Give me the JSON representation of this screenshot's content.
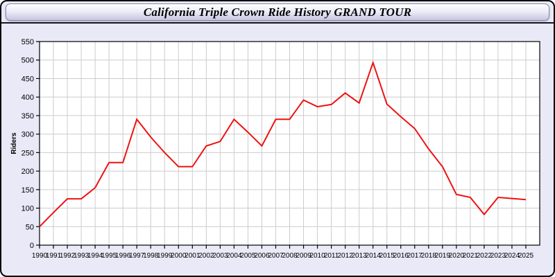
{
  "window": {
    "title": "California Triple Crown Ride History GRAND TOUR"
  },
  "colors": {
    "window_background": "#e9e9f7",
    "window_border": "#000000",
    "titlebar_border": "#8a8aa5",
    "separator": "#15151f",
    "plot_background": "#ffffff",
    "grid": "#cccccc",
    "axis": "#000000",
    "line": "#ee1111",
    "text": "#000000"
  },
  "chart_data": {
    "type": "line",
    "title": "California Triple Crown Ride History GRAND TOUR",
    "xlabel": "",
    "ylabel": "Riders",
    "ylim": [
      0,
      550
    ],
    "ytick_step": 50,
    "grid": true,
    "legend": "none",
    "x": [
      1990,
      1991,
      1992,
      1993,
      1994,
      1995,
      1996,
      1997,
      1998,
      1999,
      2000,
      2001,
      2002,
      2003,
      2004,
      2005,
      2006,
      2007,
      2008,
      2009,
      2010,
      2011,
      2012,
      2013,
      2014,
      2015,
      2016,
      2017,
      2018,
      2019,
      2020,
      2021,
      2022,
      2023,
      2024,
      2025
    ],
    "series": [
      {
        "name": "Riders",
        "color": "#ee1111",
        "values": [
          50,
          88,
          125,
          125,
          155,
          223,
          223,
          340,
          292,
          250,
          212,
          212,
          268,
          280,
          340,
          305,
          268,
          340,
          340,
          392,
          374,
          380,
          411,
          384,
          493,
          381,
          347,
          315,
          260,
          212,
          137,
          129,
          83,
          129,
          126,
          123
        ]
      }
    ]
  }
}
